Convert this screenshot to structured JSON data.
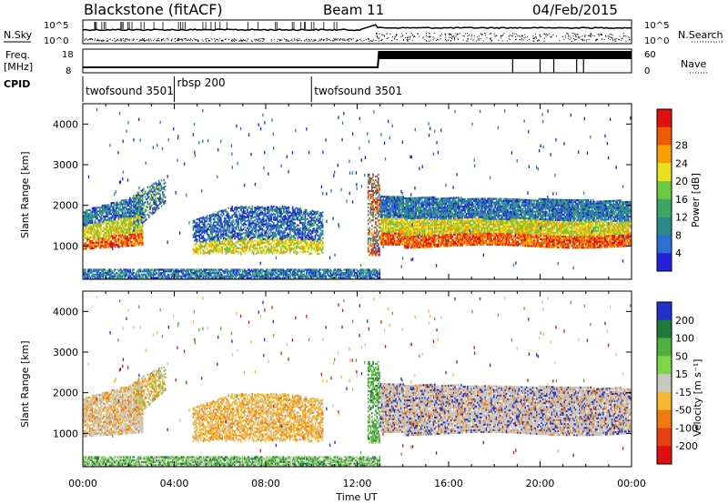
{
  "header": {
    "station": "Blackstone (fitACF)",
    "beam": "Beam 11",
    "date": "04/Feb/2015"
  },
  "top_panels": {
    "nsky_label": "N.Sky",
    "nsearch_label": "N.Search",
    "freq_label": "Freq.",
    "freq_unit": "[MHz]",
    "nave_label": "Nave",
    "cpid_label": "CPID",
    "nsky_ticks": [
      "10^5",
      "10^0"
    ],
    "nsearch_ticks": [
      "10^5",
      "10^0"
    ],
    "freq_ticks": [
      "18",
      "8"
    ],
    "nave_ticks": [
      "60",
      "0"
    ]
  },
  "cpid_segments": [
    {
      "label": "twofsound 3501",
      "start_hour": 0
    },
    {
      "label": "rbsp 200",
      "start_hour": 4
    },
    {
      "label": "twofsound 3501",
      "start_hour": 10
    }
  ],
  "colors": {
    "power": [
      "#2222dd",
      "#2e6fd4",
      "#2a8a8a",
      "#3aa860",
      "#6cc83e",
      "#e8e020",
      "#f5a000",
      "#f05a00",
      "#e01010"
    ],
    "velocity": [
      "#2030c8",
      "#1d7a3a",
      "#50b040",
      "#7fd44a",
      "#c8c8c0",
      "#f5b830",
      "#f07a10",
      "#e84010",
      "#e01010"
    ]
  },
  "chart_data": [
    {
      "type": "heatmap",
      "name": "power",
      "ylabel": "Slant Range [km]",
      "xlabel": "Time UT",
      "xlim": [
        0,
        24
      ],
      "ylim": [
        180,
        4500
      ],
      "x_ticks": [
        "00:00",
        "04:00",
        "08:00",
        "12:00",
        "16:00",
        "20:00",
        "00:00"
      ],
      "y_ticks": [
        1000,
        2000,
        3000,
        4000
      ],
      "colorbar": {
        "label": "Power [dB]",
        "ticks": [
          4,
          8,
          12,
          16,
          20,
          24,
          28
        ],
        "range": [
          0,
          32
        ]
      },
      "features": [
        {
          "desc": "ionospheric band",
          "x_start": 0,
          "x_end": 2.5,
          "range_start": 950,
          "range_end": 1900,
          "peak_db": 28
        },
        {
          "desc": "ionospheric band",
          "x_start": 2.5,
          "x_end": 3.5,
          "range_start": 1500,
          "range_end": 2600,
          "peak_db": 20
        },
        {
          "desc": "scatter",
          "x_start": 4.8,
          "x_end": 10.5,
          "range_start": 800,
          "range_end": 1700,
          "peak_db": 16
        },
        {
          "desc": "spike",
          "x_start": 12.6,
          "x_end": 12.9,
          "range_start": 800,
          "range_end": 2800,
          "peak_db": 20
        },
        {
          "desc": "ionospheric band",
          "x_start": 13,
          "x_end": 24,
          "range_start": 1100,
          "range_end": 2300,
          "peak_db": 28
        },
        {
          "desc": "ground scatter",
          "x_start": 0,
          "x_end": 13,
          "range_start": 200,
          "range_end": 450,
          "peak_db": 8
        }
      ]
    },
    {
      "type": "heatmap",
      "name": "velocity",
      "ylabel": "Slant Range [km]",
      "xlabel": "Time UT",
      "xlim": [
        0,
        24
      ],
      "ylim": [
        180,
        4500
      ],
      "x_ticks": [
        "00:00",
        "04:00",
        "08:00",
        "12:00",
        "16:00",
        "20:00",
        "00:00"
      ],
      "y_ticks": [
        1000,
        2000,
        3000,
        4000
      ],
      "colorbar": {
        "label": "Velocity [m s⁻¹]",
        "ticks": [
          200,
          100,
          50,
          15,
          -15,
          -50,
          -100,
          -200
        ],
        "range": [
          -250,
          250
        ]
      },
      "features": [
        {
          "desc": "mixed",
          "x_start": 0,
          "x_end": 3.5,
          "range_start": 900,
          "range_end": 2600,
          "velocity": -40
        },
        {
          "desc": "orange region",
          "x_start": 4.8,
          "x_end": 10.5,
          "range_start": 800,
          "range_end": 1750,
          "velocity": -50
        },
        {
          "desc": "green spike",
          "x_start": 12.5,
          "x_end": 12.9,
          "range_start": 800,
          "range_end": 2800,
          "velocity": 30
        },
        {
          "desc": "grey region",
          "x_start": 13,
          "x_end": 24,
          "range_start": 1100,
          "range_end": 2300,
          "velocity": 0
        },
        {
          "desc": "ground scatter",
          "x_start": 0,
          "x_end": 13,
          "range_start": 200,
          "range_end": 450,
          "velocity": 20
        }
      ]
    }
  ]
}
